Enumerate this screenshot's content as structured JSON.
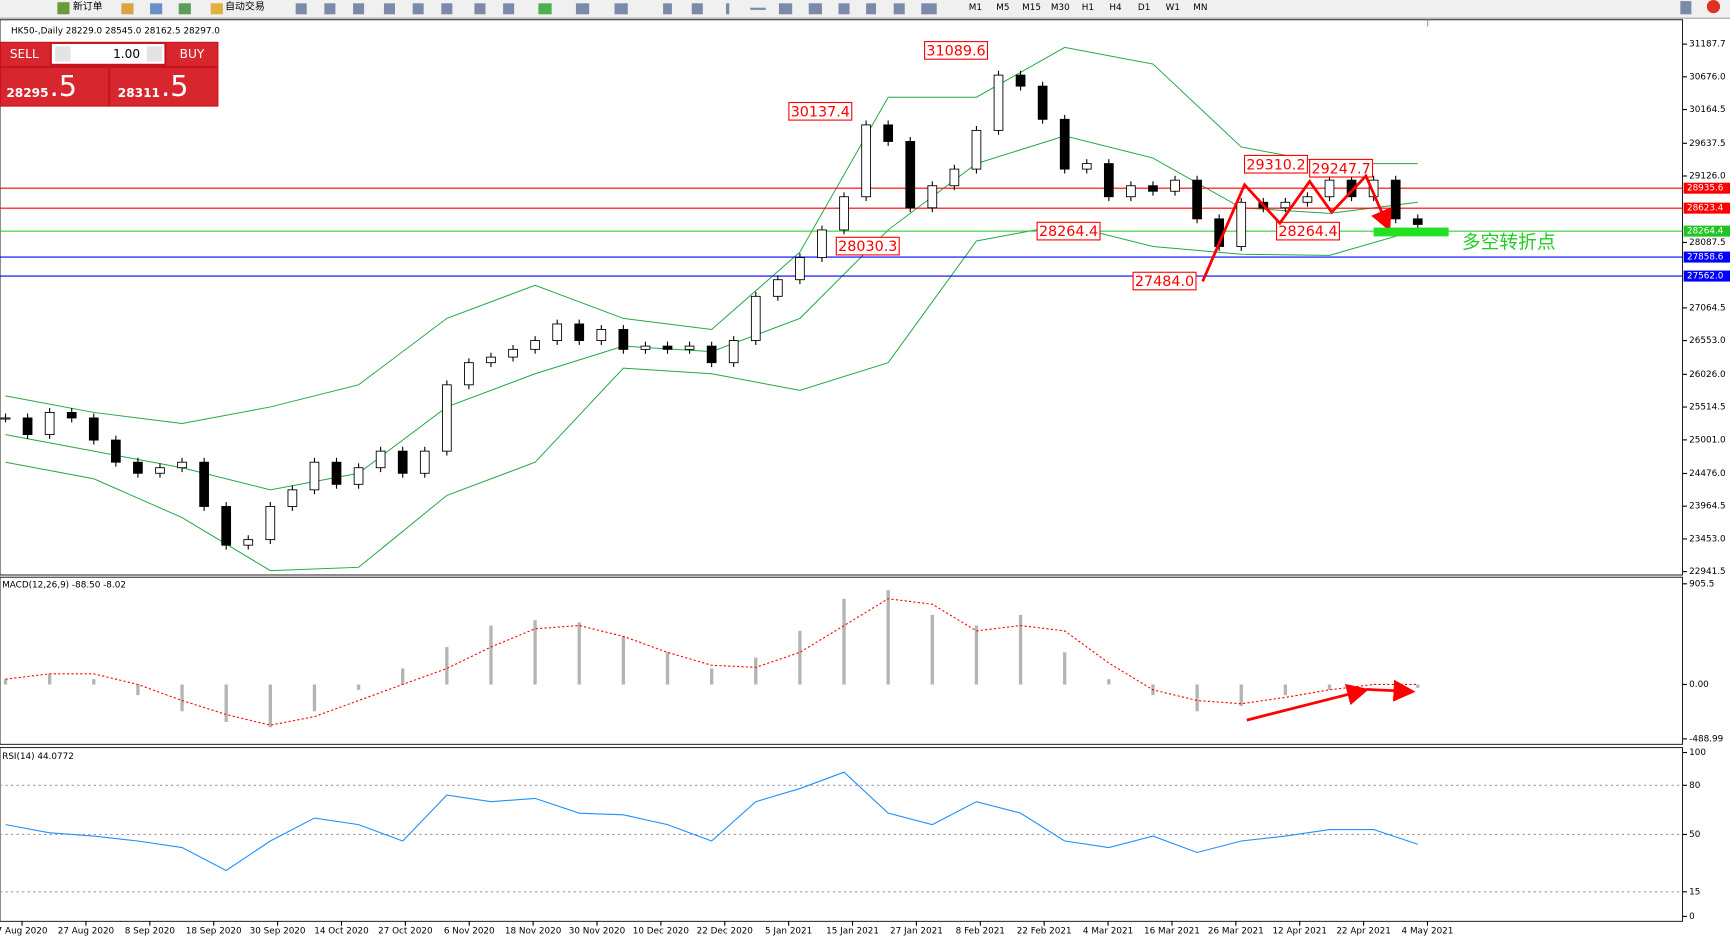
{
  "toolbar": {
    "new_order": "新订单",
    "auto_trading": "自动交易",
    "timeframes": [
      "M1",
      "M5",
      "M15",
      "M30",
      "H1",
      "H4",
      "D1",
      "W1",
      "MN"
    ]
  },
  "trade_panel": {
    "sell": "SELL",
    "lots": "1.00",
    "buy": "BUY",
    "sell_price": "28295",
    "sell_pips": ".5",
    "buy_price": "28311",
    "buy_pips": ".5"
  },
  "chart_data": [
    {
      "type": "candlestick",
      "title": "HK50-,Daily  28229.0 28545.0 28162.5 28297.0",
      "values": [
        25344,
        25084,
        25430,
        25344,
        24998,
        24652,
        24479,
        24566,
        24652,
        23960,
        23355,
        23442,
        23960,
        24220,
        24652,
        24306,
        24566,
        24825,
        24479,
        24825,
        25862,
        26208,
        26295,
        26416,
        26554,
        26813,
        26554,
        26727,
        26416,
        26467,
        26416,
        26467,
        26208,
        26554,
        27245,
        27505,
        27851,
        28283,
        28802,
        29925,
        29666,
        28629,
        28974,
        29234,
        29839,
        30703,
        30531,
        30012,
        29234,
        29320,
        28802,
        28974,
        28888,
        29061,
        28456,
        28024,
        28715,
        28629,
        28715,
        28802,
        29061,
        28802,
        29061,
        28456,
        28369
      ],
      "up_color": "#ffffff",
      "down_color": "#000000",
      "bands": {
        "color": "#22a845",
        "upper": [
          25689,
          25430,
          25257,
          25516,
          25862,
          26900,
          27418,
          26900,
          26727,
          27937,
          30358,
          30358,
          31136,
          30876,
          29580,
          29320,
          29320
        ],
        "middle": [
          25084,
          24825,
          24566,
          24220,
          24479,
          25516,
          26035,
          26467,
          26381,
          26900,
          28283,
          29320,
          29753,
          29407,
          28629,
          28542,
          28715
        ],
        "lower": [
          24652,
          24393,
          23787,
          22958,
          23009,
          24133,
          24652,
          26122,
          26035,
          25776,
          26208,
          28110,
          28369,
          28024,
          27903,
          27885,
          28283
        ]
      },
      "ylim": [
        22889,
        31568
      ],
      "yticks": [
        31187.7,
        {
          "value": 30676,
          "label": "30676.0"
        },
        30164.5,
        29637.5,
        {
          "value": 29126,
          "label": "29126.0"
        },
        28087.5,
        27064.5,
        {
          "value": 26553,
          "label": "26553.0"
        },
        {
          "value": 26026,
          "label": "26026.0"
        },
        25514.5,
        {
          "value": 25001,
          "label": "25001.0"
        },
        {
          "value": 24476,
          "label": "24476.0"
        },
        23964.5,
        {
          "value": 23453,
          "label": "23453.0"
        },
        22941.5
      ],
      "hlines": [
        {
          "value": 28935.6,
          "color": "#ff0000"
        },
        {
          "value": 28623.4,
          "color": "#ff0000"
        },
        {
          "value": 28264.4,
          "color": "#22c422"
        },
        {
          "value": 27858.6,
          "color": "#0000ff"
        },
        {
          "value": 27562,
          "label": "27562.0",
          "color": "#0000ff"
        }
      ],
      "annotations": [
        {
          "value": 31089.6
        },
        {
          "value": 30137.4
        },
        {
          "value": 28030.3
        },
        {
          "value": 28264.4
        },
        {
          "value": 27484,
          "label": "27484.0"
        },
        {
          "value": 29310.2
        },
        {
          "value": 28264.4
        },
        {
          "value": 29247.7
        }
      ],
      "note": "多空转折点"
    },
    {
      "type": "macd",
      "title": "MACD(12,26,9) -88.50 -8.02",
      "values": [
        48,
        96,
        48,
        -96,
        -241,
        -337,
        -385,
        -241,
        -48,
        144,
        337,
        530,
        578,
        559,
        433,
        289,
        144,
        241,
        482,
        771,
        848,
        626,
        530,
        626,
        289,
        48,
        -96,
        -241,
        -193,
        -96,
        -48,
        0,
        -29
      ],
      "signal": [
        48,
        96,
        96,
        0,
        -144,
        -270,
        -366,
        -289,
        -144,
        0,
        144,
        337,
        501,
        530,
        433,
        289,
        173,
        154,
        289,
        530,
        771,
        722,
        482,
        530,
        482,
        193,
        -48,
        -144,
        -173,
        -116,
        -48,
        0,
        0
      ],
      "color": "#b4b4b4",
      "signal_color": "#ff0000",
      "ylim": [
        -538,
        965
      ],
      "yticks": [
        905.5,
        {
          "value": 0,
          "label": "0.00"
        },
        -488.99
      ]
    },
    {
      "type": "rsi",
      "title": "RSI(14) 44.0772",
      "values": [
        56,
        51,
        49,
        46,
        42,
        28,
        46,
        60,
        56,
        46,
        74,
        70,
        72,
        63,
        62,
        56,
        46,
        70,
        78,
        88,
        63,
        56,
        70,
        63,
        46,
        42,
        49,
        39,
        46,
        49,
        53,
        53,
        44
      ],
      "color": "#1e90ff",
      "ylim": [
        -3,
        103
      ],
      "yticks": [
        100,
        80,
        50,
        15,
        0
      ],
      "date_labels": [
        "7 Aug 2020",
        "27 Aug 2020",
        "8 Sep 2020",
        "18 Sep 2020",
        "30 Sep 2020",
        "14 Oct 2020",
        "27 Oct 2020",
        "6 Nov 2020",
        "18 Nov 2020",
        "30 Nov 2020",
        "10 Dec 2020",
        "22 Dec 2020",
        "5 Jan 2021",
        "15 Jan 2021",
        "27 Jan 2021",
        "8 Feb 2021",
        "22 Feb 2021",
        "4 Mar 2021",
        "16 Mar 2021",
        "26 Mar 2021",
        "12 Apr 2021",
        "22 Apr 2021",
        "4 May 2021"
      ]
    }
  ]
}
